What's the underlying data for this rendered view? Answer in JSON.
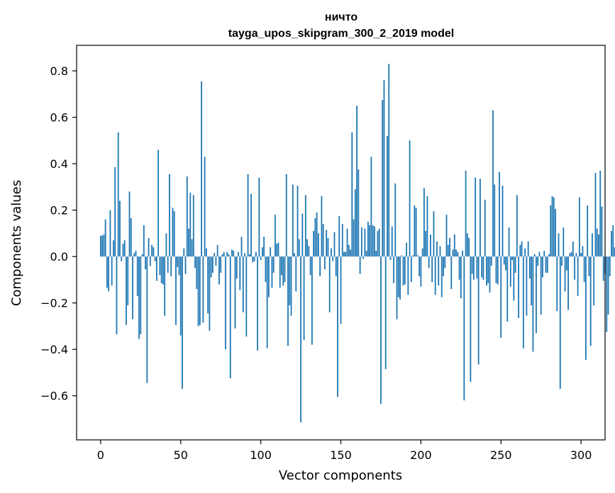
{
  "chart_data": {
    "type": "bar",
    "title": "ничто",
    "subtitle": "tayga_upos_skipgram_300_2_2019 model",
    "xlabel": "Vector components",
    "ylabel": "Components values",
    "xlim": [
      -15,
      315
    ],
    "ylim": [
      -0.79,
      0.91
    ],
    "xticks": [
      0,
      50,
      100,
      150,
      200,
      250,
      300
    ],
    "xtick_labels": [
      "0",
      "50",
      "100",
      "150",
      "200",
      "250",
      "300"
    ],
    "yticks": [
      -0.6,
      -0.4,
      -0.2,
      0.0,
      0.2,
      0.4,
      0.6,
      0.8
    ],
    "ytick_labels": [
      "−0.6",
      "−0.4",
      "−0.2",
      "0.0",
      "0.2",
      "0.4",
      "0.6",
      "0.8"
    ],
    "grid": false,
    "bar_color": "#1f77b4",
    "values": [
      0.09,
      0.09,
      0.095,
      0.16,
      -0.135,
      -0.15,
      0.2,
      -0.125,
      0.07,
      0.385,
      -0.335,
      0.535,
      0.24,
      -0.02,
      0.055,
      0.07,
      -0.295,
      -0.21,
      0.28,
      0.165,
      -0.27,
      0.015,
      0.025,
      -0.17,
      -0.355,
      -0.335,
      0.01,
      0.135,
      -0.055,
      -0.545,
      0.08,
      -0.04,
      0.05,
      0.04,
      -0.02,
      -0.105,
      0.46,
      -0.08,
      -0.115,
      -0.12,
      -0.255,
      0.1,
      -0.07,
      0.355,
      -0.085,
      0.21,
      0.195,
      -0.295,
      -0.045,
      -0.08,
      -0.34,
      -0.57,
      0.035,
      -0.075,
      0.345,
      0.12,
      0.275,
      0.075,
      0.265,
      -0.05,
      -0.14,
      -0.3,
      -0.295,
      0.755,
      -0.285,
      0.43,
      0.035,
      -0.245,
      -0.32,
      -0.09,
      -0.07,
      0.015,
      -0.04,
      0.05,
      -0.12,
      -0.07,
      0.01,
      0.02,
      -0.4,
      0.02,
      0.01,
      -0.525,
      0.03,
      0.025,
      -0.31,
      -0.095,
      0.02,
      -0.145,
      0.085,
      -0.24,
      0.015,
      -0.345,
      0.355,
      0.01,
      0.27,
      -0.025,
      -0.02,
      0.02,
      -0.405,
      0.34,
      -0.015,
      0.04,
      0.085,
      -0.11,
      -0.395,
      -0.175,
      0.04,
      -0.135,
      -0.07,
      0.18,
      0.055,
      0.06,
      -0.135,
      -0.08,
      -0.125,
      -0.11,
      0.355,
      -0.385,
      -0.21,
      -0.255,
      0.31,
      0.015,
      -0.15,
      0.305,
      0.075,
      -0.715,
      0.185,
      -0.36,
      0.265,
      0.075,
      0.045,
      -0.08,
      -0.38,
      0.11,
      0.165,
      0.19,
      0.1,
      -0.085,
      0.26,
      0.14,
      -0.055,
      0.115,
      0.08,
      -0.24,
      0.035,
      -0.02,
      0.105,
      -0.085,
      -0.605,
      0.175,
      -0.29,
      0.14,
      0.02,
      0.02,
      0.12,
      0.05,
      0.03,
      0.535,
      0.16,
      0.29,
      0.65,
      0.375,
      -0.075,
      0.125,
      -0.01,
      0.12,
      0.025,
      0.15,
      0.135,
      0.43,
      0.135,
      0.13,
      0.025,
      0.11,
      0.12,
      -0.635,
      0.675,
      0.76,
      -0.485,
      0.52,
      0.83,
      -0.015,
      0.13,
      -0.115,
      0.315,
      -0.27,
      -0.175,
      -0.185,
      0.005,
      -0.125,
      -0.12,
      0.06,
      -0.165,
      0.5,
      -0.11,
      0.005,
      0.22,
      0.21,
      0.005,
      -0.085,
      -0.13,
      0.035,
      0.295,
      0.11,
      0.26,
      -0.05,
      0.095,
      -0.11,
      0.195,
      -0.165,
      0.065,
      -0.125,
      0.045,
      -0.175,
      -0.085,
      -0.05,
      0.18,
      0.05,
      0.08,
      -0.14,
      0.03,
      0.095,
      0.03,
      0.02,
      -0.1,
      -0.18,
      0.025,
      -0.62,
      0.37,
      0.1,
      0.08,
      -0.54,
      -0.075,
      -0.1,
      0.34,
      -0.095,
      -0.465,
      0.335,
      -0.09,
      -0.1,
      0.245,
      -0.125,
      -0.115,
      -0.155,
      -0.04,
      0.63,
      0.31,
      -0.115,
      -0.12,
      0.365,
      -0.35,
      0.305,
      -0.035,
      -0.06,
      -0.28,
      0.125,
      -0.13,
      -0.015,
      -0.19,
      -0.07,
      0.265,
      -0.265,
      0.05,
      0.065,
      -0.395,
      0.035,
      -0.255,
      0.065,
      -0.095,
      -0.21,
      -0.41,
      0.01,
      -0.33,
      -0.04,
      0.02,
      -0.25,
      -0.09,
      0.025,
      -0.07,
      -0.07,
      0.01,
      0.22,
      0.26,
      0.255,
      0.205,
      -0.235,
      0.1,
      -0.57,
      -0.04,
      0.125,
      -0.15,
      -0.06,
      -0.23,
      0.015,
      0.02,
      0.065,
      -0.1,
      0.015,
      -0.17,
      0.255,
      0.015,
      0.045,
      -0.11,
      -0.445,
      0.22,
      -0.085,
      -0.385,
      0.1,
      -0.21,
      0.36,
      0.12,
      0.095,
      0.37,
      0.215,
      -0.105,
      -0.075,
      -0.325,
      -0.25,
      -0.085,
      0.11,
      0.135,
      0.04
    ]
  }
}
